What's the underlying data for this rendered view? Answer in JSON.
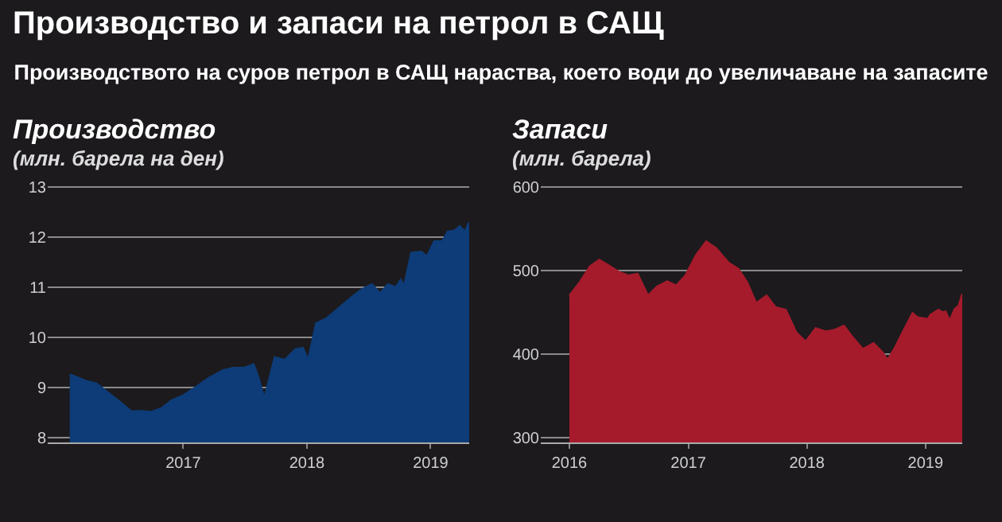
{
  "chart_data": [
    {
      "type": "other",
      "title": "Производство и запаси на петрол в САЩ",
      "subtitle": "Производството на суров петрол в САЩ нараства, което води до увеличаване на запасите"
    },
    {
      "type": "area",
      "title": "Производство",
      "ylabel": "(млн. барела на ден)",
      "grid": "y",
      "x": [
        "2016-02-01",
        "2016-03-20",
        "2016-04-20",
        "2016-05-20",
        "2016-06-28",
        "2016-08-01",
        "2016-08-28",
        "2016-09-28",
        "2016-10-28",
        "2016-11-28",
        "2017-01-01",
        "2017-02-12",
        "2017-03-20",
        "2017-04-28",
        "2017-05-28",
        "2017-06-28",
        "2017-07-28",
        "2017-08-12",
        "2017-08-28",
        "2017-09-28",
        "2017-10-28",
        "2017-11-28",
        "2017-12-20",
        "2018-01-05",
        "2018-01-28",
        "2018-02-28",
        "2018-03-28",
        "2018-05-12",
        "2018-06-12",
        "2018-07-12",
        "2018-08-05",
        "2018-08-28",
        "2018-09-20",
        "2018-10-05",
        "2018-10-15",
        "2018-11-05",
        "2018-12-05",
        "2018-12-20",
        "2018-12-28",
        "2019-01-12",
        "2019-02-05",
        "2019-02-20",
        "2019-03-12",
        "2019-03-28",
        "2019-04-12",
        "2019-04-25"
      ],
      "series": [
        {
          "color": "#0d3c78",
          "values": [
            9.26,
            9.13,
            9.08,
            8.92,
            8.71,
            8.52,
            8.53,
            8.51,
            8.58,
            8.74,
            8.84,
            9.03,
            9.2,
            9.34,
            9.39,
            9.39,
            9.46,
            9.18,
            8.78,
            9.6,
            9.55,
            9.76,
            9.79,
            9.55,
            10.28,
            10.38,
            10.54,
            10.8,
            10.96,
            11.06,
            10.88,
            11.06,
            11.0,
            11.15,
            11.03,
            11.69,
            11.71,
            11.62,
            11.71,
            11.92,
            11.92,
            12.11,
            12.13,
            12.22,
            12.11,
            12.3
          ]
        }
      ],
      "xlim": [
        "2015-11-28",
        "2019-04-25"
      ],
      "xticks": [
        {
          "value": "2017-01-01",
          "label": "2017"
        },
        {
          "value": "2018-01-01",
          "label": "2018"
        },
        {
          "value": "2019-01-01",
          "label": "2019"
        }
      ],
      "ylim": [
        7.9,
        13.05
      ],
      "yticks": [
        8,
        9,
        10,
        11,
        12,
        13
      ]
    },
    {
      "type": "area",
      "title": "Запаси",
      "ylabel": "(млн. барела)",
      "grid": "y",
      "x": [
        "2016-01-01",
        "2016-02-02",
        "2016-03-04",
        "2016-04-02",
        "2016-04-28",
        "2016-05-30",
        "2016-07-01",
        "2016-07-29",
        "2016-08-30",
        "2016-09-27",
        "2016-10-28",
        "2016-11-25",
        "2016-12-23",
        "2017-01-24",
        "2017-02-25",
        "2017-03-27",
        "2017-05-06",
        "2017-06-04",
        "2017-07-01",
        "2017-07-29",
        "2017-08-30",
        "2017-09-27",
        "2017-10-28",
        "2017-11-29",
        "2017-12-28",
        "2018-01-28",
        "2018-03-01",
        "2018-03-28",
        "2018-04-25",
        "2018-05-22",
        "2018-06-22",
        "2018-07-25",
        "2018-08-22",
        "2018-09-06",
        "2018-09-28",
        "2018-10-25",
        "2018-11-22",
        "2018-12-07",
        "2019-01-08",
        "2019-01-16",
        "2019-02-10",
        "2019-02-22",
        "2019-03-04",
        "2019-03-16",
        "2019-04-01",
        "2019-04-13",
        "2019-04-24"
      ],
      "series": [
        {
          "color": "#a51b2c",
          "values": [
            470,
            486,
            505,
            513,
            507,
            499,
            494,
            496,
            470,
            481,
            487,
            482,
            494,
            518,
            535,
            527,
            509,
            502,
            486,
            461,
            470,
            456,
            453,
            426,
            415,
            431,
            427,
            429,
            434,
            420,
            406,
            413,
            402,
            393,
            407,
            428,
            449,
            444,
            442,
            447,
            453,
            450,
            451,
            440,
            454,
            458,
            472
          ]
        }
      ],
      "xlim": [
        "2015-10-05",
        "2019-04-24"
      ],
      "xticks": [
        {
          "value": "2016-01-01",
          "label": "2016"
        },
        {
          "value": "2017-01-01",
          "label": "2017"
        },
        {
          "value": "2018-01-01",
          "label": "2018"
        },
        {
          "value": "2019-01-01",
          "label": "2019"
        }
      ],
      "ylim": [
        294,
        603
      ],
      "yticks": [
        300,
        400,
        500,
        600
      ]
    }
  ]
}
